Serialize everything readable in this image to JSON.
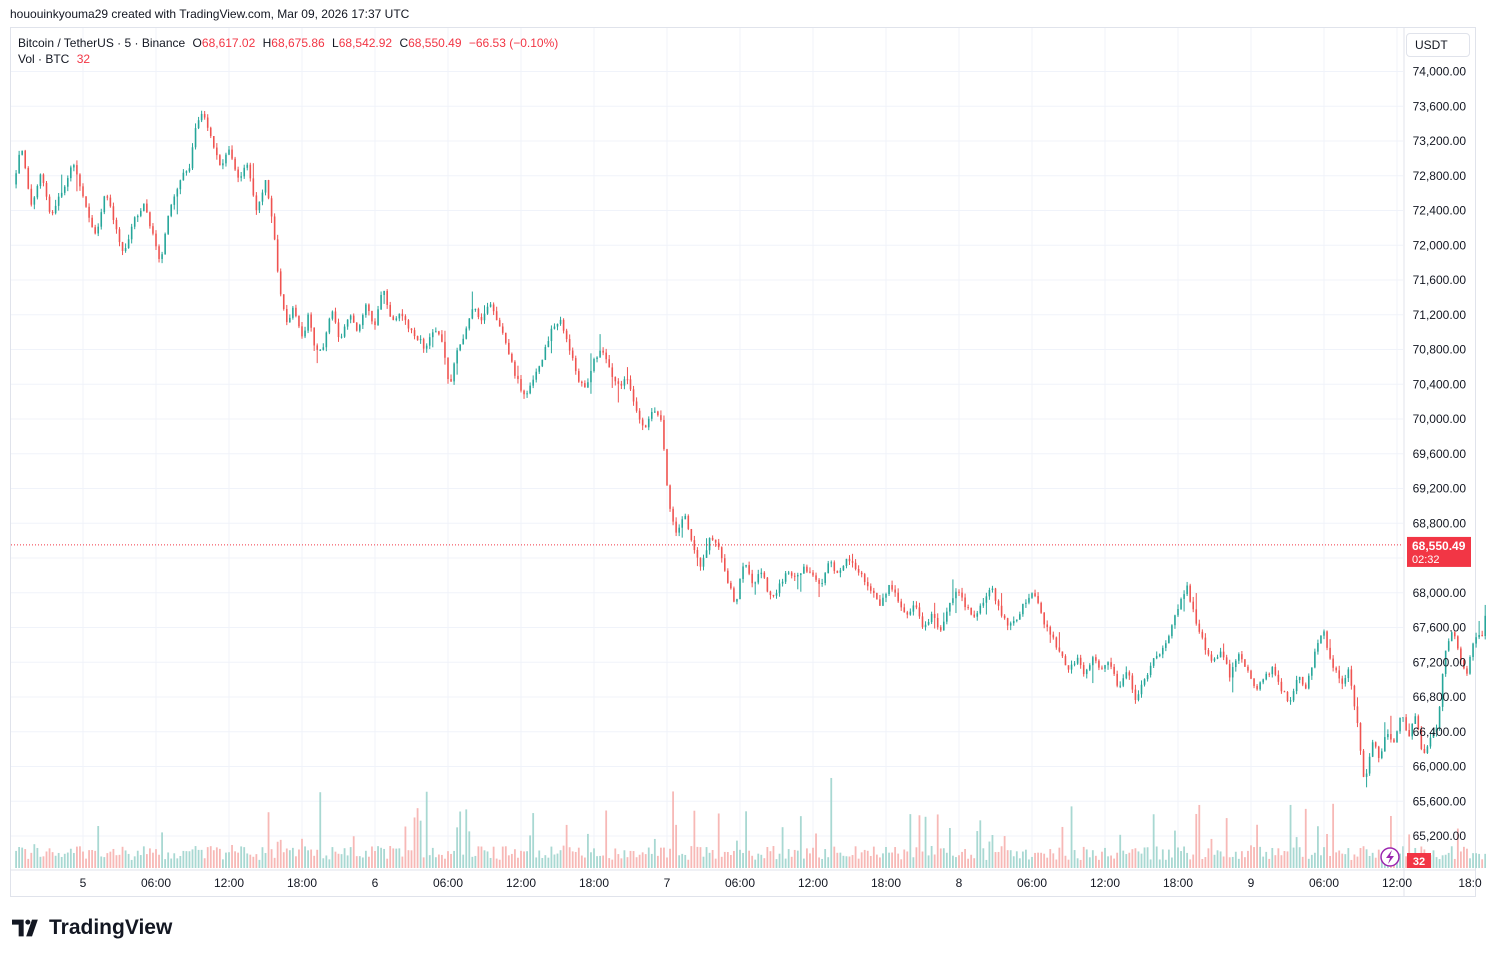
{
  "header": {
    "credit": "hououinkyouma29 created with TradingView.com, Mar 09, 2026 17:37 UTC"
  },
  "legend": {
    "symbol": "Bitcoin / TetherUS · 5 · Binance",
    "open_label": "O",
    "open": "68,617.02",
    "high_label": "H",
    "high": "68,675.86",
    "low_label": "L",
    "low": "68,542.92",
    "close_label": "C",
    "close": "68,550.49",
    "change": "−66.53 (−0.10%)",
    "volume_label": "Vol · BTC",
    "volume": "32"
  },
  "price_axis": {
    "currency": "USDT",
    "last_price": "68,550.49",
    "countdown": "02:32",
    "volume_badge": "32"
  },
  "brand": {
    "name": "TradingView",
    "logo_icon": "tradingview-logo-icon"
  },
  "colors": {
    "up": "#26a69a",
    "down": "#ef5350",
    "last_price": "#f23645",
    "grid": "#f0f3fa",
    "volume_up": "#a8d8d2",
    "volume_down": "#f7b8b6"
  },
  "chart_data": {
    "type": "candlestick",
    "symbol": "BTCUSDT",
    "interval": "5",
    "ylim": [
      64900,
      74200
    ],
    "y_ticks": [
      65200,
      65600,
      66000,
      66400,
      66800,
      67200,
      67600,
      68000,
      68400,
      68800,
      69200,
      69600,
      70000,
      70400,
      70800,
      71200,
      71600,
      72000,
      72400,
      72800,
      73200,
      73600,
      74000
    ],
    "y_tick_labels": [
      "65,200.00",
      "65,600.00",
      "66,000.00",
      "66,400.00",
      "66,800.00",
      "67,200.00",
      "67,600.00",
      "68,000.00",
      "68,400.00",
      "68,800.00",
      "69,200.00",
      "69,600.00",
      "70,000.00",
      "70,400.00",
      "70,800.00",
      "71,200.00",
      "71,600.00",
      "72,000.00",
      "72,400.00",
      "72,800.00",
      "73,200.00",
      "73,600.00",
      "74,000.00"
    ],
    "x_ticks": [
      "5",
      "06:00",
      "12:00",
      "18:00",
      "6",
      "06:00",
      "12:00",
      "18:00",
      "7",
      "06:00",
      "12:00",
      "18:00",
      "8",
      "06:00",
      "12:00",
      "18:00",
      "9",
      "06:00",
      "12:00",
      "18:0"
    ],
    "x_tick_hours": [
      0,
      6,
      12,
      18,
      24,
      30,
      36,
      42,
      48,
      54,
      60,
      66,
      72,
      78,
      84,
      90,
      96,
      102,
      108,
      114
    ],
    "last_price": 68550.49,
    "path": [
      [
        -5.5,
        72700
      ],
      [
        -4.8,
        73150
      ],
      [
        -4.0,
        72450
      ],
      [
        -3.2,
        72850
      ],
      [
        -2.4,
        72350
      ],
      [
        -1.5,
        72600
      ],
      [
        -0.6,
        72950
      ],
      [
        0.4,
        72500
      ],
      [
        1.3,
        72100
      ],
      [
        2.1,
        72650
      ],
      [
        2.9,
        72200
      ],
      [
        3.6,
        71900
      ],
      [
        4.3,
        72250
      ],
      [
        5.3,
        72500
      ],
      [
        6.0,
        72100
      ],
      [
        6.6,
        71800
      ],
      [
        7.3,
        72400
      ],
      [
        8.2,
        72750
      ],
      [
        9.0,
        72900
      ],
      [
        9.6,
        73400
      ],
      [
        10.1,
        73550
      ],
      [
        10.8,
        73200
      ],
      [
        11.5,
        72900
      ],
      [
        12.2,
        73100
      ],
      [
        13.0,
        72750
      ],
      [
        13.7,
        72950
      ],
      [
        14.5,
        72400
      ],
      [
        15.3,
        72750
      ],
      [
        15.9,
        72200
      ],
      [
        16.4,
        71500
      ],
      [
        17.0,
        71100
      ],
      [
        17.6,
        71300
      ],
      [
        18.2,
        70900
      ],
      [
        18.8,
        71200
      ],
      [
        19.4,
        70750
      ],
      [
        20.0,
        70850
      ],
      [
        20.7,
        71250
      ],
      [
        21.4,
        70900
      ],
      [
        22.1,
        71200
      ],
      [
        22.8,
        71000
      ],
      [
        23.5,
        71350
      ],
      [
        24.2,
        71050
      ],
      [
        24.9,
        71500
      ],
      [
        25.6,
        71100
      ],
      [
        26.3,
        71250
      ],
      [
        27.0,
        71050
      ],
      [
        27.7,
        70950
      ],
      [
        28.4,
        70800
      ],
      [
        29.1,
        71050
      ],
      [
        29.8,
        70900
      ],
      [
        30.4,
        70350
      ],
      [
        31.0,
        70800
      ],
      [
        31.6,
        70950
      ],
      [
        32.3,
        71300
      ],
      [
        33.0,
        71150
      ],
      [
        33.7,
        71350
      ],
      [
        34.4,
        71100
      ],
      [
        35.1,
        70850
      ],
      [
        35.8,
        70500
      ],
      [
        36.6,
        70250
      ],
      [
        37.3,
        70450
      ],
      [
        38.0,
        70700
      ],
      [
        38.7,
        71000
      ],
      [
        39.4,
        71150
      ],
      [
        40.1,
        70900
      ],
      [
        40.8,
        70500
      ],
      [
        41.5,
        70350
      ],
      [
        42.2,
        70650
      ],
      [
        42.9,
        70800
      ],
      [
        43.6,
        70550
      ],
      [
        44.3,
        70400
      ],
      [
        45.0,
        70450
      ],
      [
        45.7,
        70100
      ],
      [
        46.4,
        69850
      ],
      [
        47.1,
        70150
      ],
      [
        47.8,
        69950
      ],
      [
        48.4,
        69000
      ],
      [
        49.0,
        68700
      ],
      [
        49.7,
        68900
      ],
      [
        50.4,
        68500
      ],
      [
        51.1,
        68300
      ],
      [
        51.8,
        68650
      ],
      [
        52.5,
        68500
      ],
      [
        53.2,
        68150
      ],
      [
        53.9,
        67850
      ],
      [
        54.6,
        68400
      ],
      [
        55.3,
        68100
      ],
      [
        56.0,
        68250
      ],
      [
        56.7,
        67950
      ],
      [
        57.4,
        68050
      ],
      [
        58.1,
        68250
      ],
      [
        58.8,
        68150
      ],
      [
        59.5,
        68300
      ],
      [
        60.2,
        68200
      ],
      [
        60.9,
        68050
      ],
      [
        61.6,
        68350
      ],
      [
        62.3,
        68200
      ],
      [
        63.0,
        68400
      ],
      [
        63.7,
        68300
      ],
      [
        64.4,
        68150
      ],
      [
        65.1,
        68000
      ],
      [
        65.8,
        67850
      ],
      [
        66.5,
        68100
      ],
      [
        67.2,
        67950
      ],
      [
        67.9,
        67700
      ],
      [
        68.6,
        67900
      ],
      [
        69.3,
        67600
      ],
      [
        70.0,
        67750
      ],
      [
        70.7,
        67550
      ],
      [
        71.4,
        67850
      ],
      [
        72.1,
        68000
      ],
      [
        72.8,
        67850
      ],
      [
        73.5,
        67700
      ],
      [
        74.2,
        67900
      ],
      [
        74.9,
        68050
      ],
      [
        75.6,
        67800
      ],
      [
        76.3,
        67600
      ],
      [
        77.0,
        67700
      ],
      [
        77.7,
        67900
      ],
      [
        78.4,
        68000
      ],
      [
        79.1,
        67700
      ],
      [
        79.8,
        67500
      ],
      [
        80.5,
        67350
      ],
      [
        81.2,
        67100
      ],
      [
        81.9,
        67250
      ],
      [
        82.6,
        67050
      ],
      [
        83.3,
        67300
      ],
      [
        84.0,
        67100
      ],
      [
        84.7,
        67200
      ],
      [
        85.4,
        66900
      ],
      [
        86.1,
        67100
      ],
      [
        86.8,
        66750
      ],
      [
        87.5,
        67000
      ],
      [
        88.2,
        67200
      ],
      [
        88.9,
        67350
      ],
      [
        89.6,
        67550
      ],
      [
        90.3,
        67850
      ],
      [
        91.0,
        68050
      ],
      [
        91.7,
        67700
      ],
      [
        92.4,
        67400
      ],
      [
        93.1,
        67200
      ],
      [
        93.8,
        67350
      ],
      [
        94.5,
        67050
      ],
      [
        95.2,
        67300
      ],
      [
        95.9,
        67100
      ],
      [
        96.6,
        66900
      ],
      [
        97.3,
        67000
      ],
      [
        98.0,
        67150
      ],
      [
        98.7,
        66900
      ],
      [
        99.4,
        66750
      ],
      [
        100.1,
        67050
      ],
      [
        100.8,
        66900
      ],
      [
        101.5,
        67300
      ],
      [
        102.2,
        67550
      ],
      [
        102.9,
        67200
      ],
      [
        103.6,
        66950
      ],
      [
        104.3,
        67100
      ],
      [
        105.0,
        66500
      ],
      [
        105.6,
        65750
      ],
      [
        106.2,
        66300
      ],
      [
        106.8,
        66100
      ],
      [
        107.4,
        66400
      ],
      [
        108.0,
        66250
      ],
      [
        108.6,
        66600
      ],
      [
        109.2,
        66350
      ],
      [
        109.8,
        66600
      ],
      [
        110.4,
        66100
      ],
      [
        111.0,
        66350
      ],
      [
        111.6,
        66500
      ],
      [
        112.2,
        67300
      ],
      [
        112.8,
        67600
      ],
      [
        113.4,
        67250
      ],
      [
        114.0,
        67100
      ],
      [
        114.6,
        67450
      ],
      [
        115.2,
        67500
      ],
      [
        115.8,
        67900
      ],
      [
        116.4,
        68050
      ],
      [
        117.0,
        67700
      ],
      [
        117.6,
        67450
      ],
      [
        118.2,
        67300
      ],
      [
        118.8,
        67200
      ],
      [
        119.4,
        67500
      ],
      [
        120.0,
        67700
      ],
      [
        120.6,
        67650
      ],
      [
        121.2,
        67900
      ],
      [
        121.8,
        68300
      ],
      [
        122.4,
        68050
      ],
      [
        123.0,
        67900
      ],
      [
        123.6,
        67700
      ],
      [
        124.2,
        67500
      ],
      [
        124.8,
        67800
      ],
      [
        125.4,
        67950
      ],
      [
        126.0,
        67700
      ],
      [
        126.6,
        67900
      ],
      [
        127.2,
        68050
      ],
      [
        127.8,
        68300
      ],
      [
        128.4,
        68650
      ],
      [
        129.0,
        69100
      ],
      [
        129.6,
        69400
      ],
      [
        130.2,
        69000
      ],
      [
        130.8,
        69250
      ],
      [
        131.4,
        68900
      ],
      [
        132.0,
        69100
      ],
      [
        132.6,
        68850
      ],
      [
        133.2,
        68950
      ],
      [
        133.8,
        68700
      ],
      [
        134.5,
        68550.49
      ]
    ]
  }
}
